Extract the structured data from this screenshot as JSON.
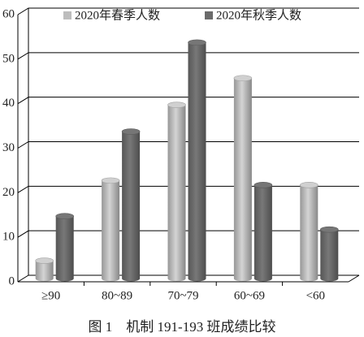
{
  "chart_data": {
    "type": "bar",
    "caption": "图 1　机制 191-193 班成绩比较",
    "categories": [
      "≥90",
      "80~89",
      "70~79",
      "60~69",
      "<60"
    ],
    "series": [
      {
        "name": "2020年春季人数",
        "color": "#bdbdbd",
        "values": [
          4,
          22,
          39,
          45,
          21
        ]
      },
      {
        "name": "2020年秋季人数",
        "color": "#6b6b6b",
        "values": [
          14,
          33,
          53,
          21,
          11
        ]
      }
    ],
    "ylim": [
      0,
      60
    ],
    "yticks": [
      0,
      10,
      20,
      30,
      40,
      50,
      60
    ],
    "grid": true,
    "legend": "top"
  }
}
